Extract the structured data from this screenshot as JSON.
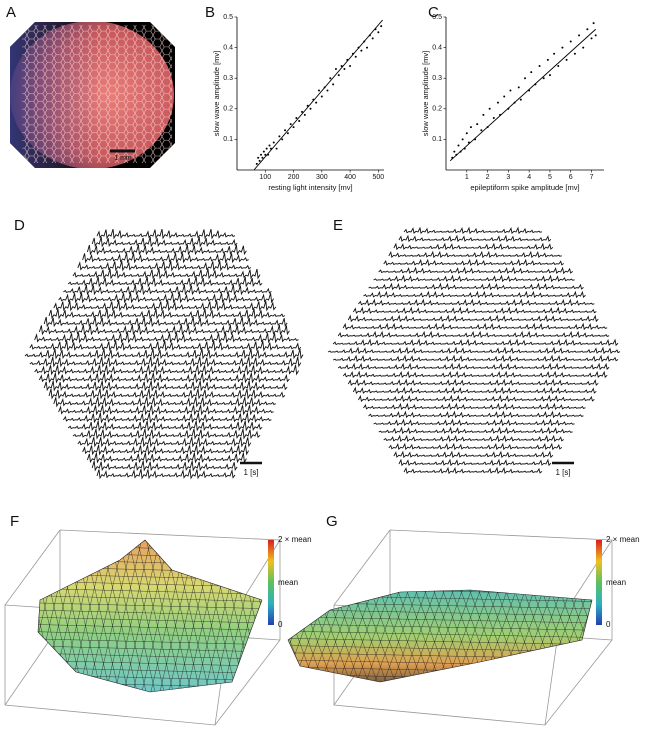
{
  "panels": {
    "A": {
      "label": "A",
      "scale_bar": "1 mm"
    },
    "D": {
      "label": "D",
      "scale_bar": "1 [s]"
    },
    "E": {
      "label": "E",
      "scale_bar": "1 [s]"
    },
    "F": {
      "label": "F",
      "colorbar": [
        "2 × mean",
        "mean",
        "0"
      ]
    },
    "G": {
      "label": "G",
      "colorbar": [
        "2 × mean",
        "mean",
        "0"
      ]
    }
  },
  "chart_data": [
    {
      "type": "scatter",
      "label": "B",
      "xlabel": "resting light intensity [mv]",
      "ylabel": "slow wave amplitude [mv]",
      "xlim": [
        0,
        520
      ],
      "ylim": [
        0,
        0.5
      ],
      "xticks": [
        100,
        200,
        300,
        400,
        500
      ],
      "yticks": [
        0.1,
        0.2,
        0.3,
        0.4,
        0.5
      ],
      "color": "#000",
      "x": [
        70,
        75,
        80,
        85,
        90,
        95,
        100,
        105,
        110,
        115,
        120,
        130,
        140,
        150,
        160,
        170,
        180,
        190,
        200,
        210,
        220,
        230,
        240,
        250,
        260,
        270,
        280,
        290,
        300,
        310,
        320,
        330,
        340,
        350,
        360,
        370,
        380,
        390,
        400,
        410,
        420,
        430,
        440,
        450,
        460,
        470,
        480,
        490,
        500,
        510
      ],
      "y": [
        0.02,
        0.04,
        0.03,
        0.05,
        0.04,
        0.06,
        0.05,
        0.07,
        0.05,
        0.08,
        0.07,
        0.09,
        0.07,
        0.11,
        0.1,
        0.13,
        0.12,
        0.15,
        0.14,
        0.17,
        0.16,
        0.19,
        0.18,
        0.21,
        0.2,
        0.23,
        0.22,
        0.26,
        0.24,
        0.27,
        0.26,
        0.3,
        0.28,
        0.33,
        0.31,
        0.34,
        0.33,
        0.36,
        0.34,
        0.38,
        0.37,
        0.4,
        0.39,
        0.42,
        0.4,
        0.44,
        0.43,
        0.46,
        0.45,
        0.47
      ],
      "fit": {
        "x": [
          60,
          515
        ],
        "y": [
          0,
          0.49
        ]
      }
    },
    {
      "type": "scatter",
      "label": "C",
      "xlabel": "epileptiform spike amplitude [mv]",
      "ylabel": "slow wave amplitude [mv]",
      "xlim": [
        0,
        7.6
      ],
      "ylim": [
        0,
        0.5
      ],
      "xticks": [
        1,
        2,
        3,
        4,
        5,
        6,
        7
      ],
      "yticks": [
        0.1,
        0.2,
        0.3,
        0.4,
        0.5
      ],
      "color": "#000",
      "x": [
        0.3,
        0.4,
        0.5,
        0.6,
        0.7,
        0.8,
        0.9,
        1.0,
        1.1,
        1.2,
        1.4,
        1.5,
        1.7,
        1.8,
        2.0,
        2.1,
        2.3,
        2.5,
        2.6,
        2.8,
        3.0,
        3.1,
        3.3,
        3.5,
        3.6,
        3.8,
        4.0,
        4.1,
        4.3,
        4.5,
        4.7,
        4.9,
        5.0,
        5.2,
        5.4,
        5.6,
        5.8,
        6.0,
        6.2,
        6.4,
        6.6,
        6.8,
        7.0,
        7.1,
        7.2
      ],
      "y": [
        0.04,
        0.06,
        0.05,
        0.08,
        0.06,
        0.1,
        0.07,
        0.12,
        0.09,
        0.14,
        0.1,
        0.15,
        0.13,
        0.18,
        0.14,
        0.2,
        0.17,
        0.22,
        0.18,
        0.24,
        0.2,
        0.26,
        0.22,
        0.27,
        0.23,
        0.3,
        0.26,
        0.32,
        0.28,
        0.34,
        0.3,
        0.36,
        0.31,
        0.38,
        0.34,
        0.4,
        0.36,
        0.42,
        0.38,
        0.44,
        0.4,
        0.46,
        0.43,
        0.48,
        0.44
      ],
      "fit": {
        "x": [
          0.2,
          7.2
        ],
        "y": [
          0.03,
          0.46
        ]
      }
    }
  ]
}
